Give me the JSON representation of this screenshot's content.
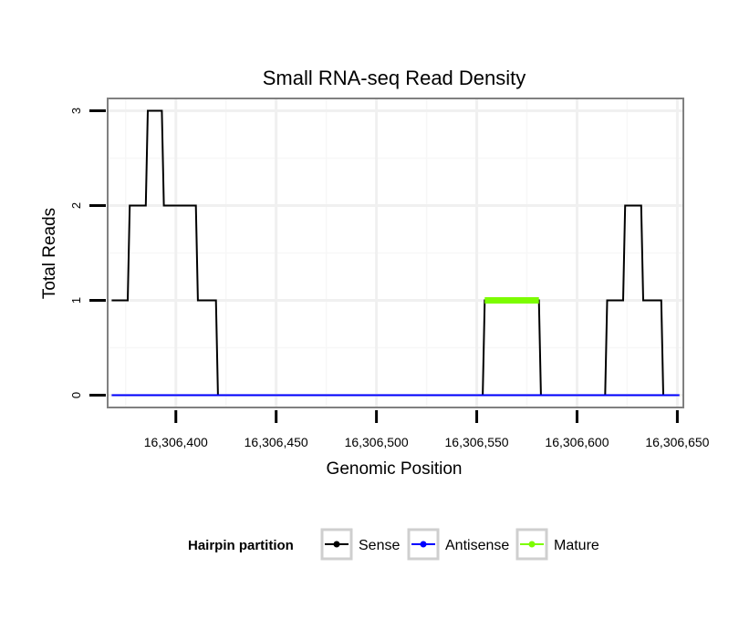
{
  "chart_data": {
    "type": "line",
    "title": "Small RNA-seq Read Density",
    "xlabel": "Genomic Position",
    "ylabel": "Total Reads",
    "xlim": [
      16306366,
      16306653
    ],
    "ylim": [
      -0.13,
      3.13
    ],
    "x_ticks": [
      16306400,
      16306450,
      16306500,
      16306550,
      16306600,
      16306650
    ],
    "x_tick_labels": [
      "16,306,400",
      "16,306,450",
      "16,306,500",
      "16,306,550",
      "16,306,600",
      "16,306,650"
    ],
    "y_ticks": [
      0,
      1,
      2,
      3
    ],
    "y_tick_labels": [
      "0",
      "1",
      "2",
      "3"
    ],
    "grid": true,
    "legend": {
      "title": "Hairpin partition",
      "position": "bottom",
      "entries": [
        "Sense",
        "Antisense",
        "Mature"
      ]
    },
    "series": [
      {
        "name": "Sense",
        "color": "#000000",
        "x": [
          16306368,
          16306376,
          16306377,
          16306385,
          16306386,
          16306393,
          16306394,
          16306410,
          16306411,
          16306420,
          16306421,
          16306553,
          16306554,
          16306581,
          16306582,
          16306614,
          16306615,
          16306623,
          16306624,
          16306632,
          16306633,
          16306642,
          16306643,
          16306651
        ],
        "y": [
          1,
          1,
          2,
          2,
          3,
          3,
          2,
          2,
          1,
          1,
          0,
          0,
          1,
          1,
          0,
          0,
          1,
          1,
          2,
          2,
          1,
          1,
          0,
          0
        ]
      },
      {
        "name": "Antisense",
        "color": "#0000ff",
        "x": [
          16306368,
          16306651
        ],
        "y": [
          0,
          0
        ]
      },
      {
        "name": "Mature",
        "color": "#7cfc00",
        "x": [
          16306554,
          16306581
        ],
        "y": [
          1,
          1
        ]
      }
    ]
  }
}
